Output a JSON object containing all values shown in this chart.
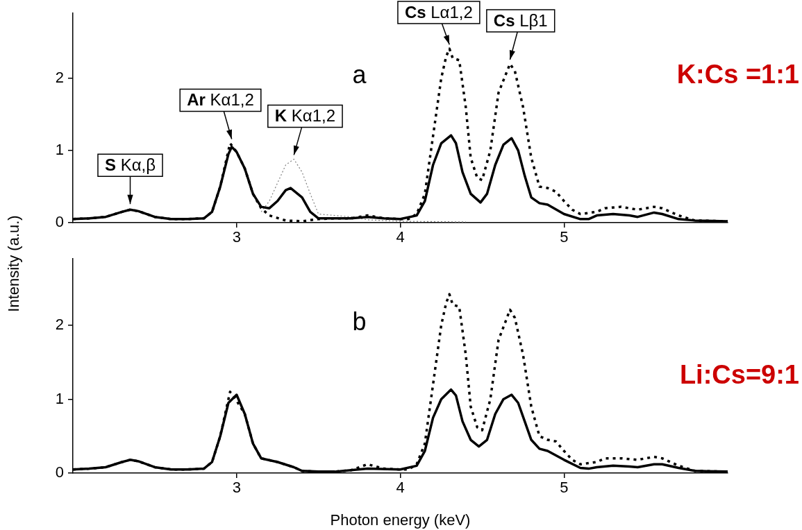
{
  "chart_data": [
    {
      "type": "line",
      "title": "a",
      "subtitle": "K:Cs =1:1",
      "ylabel": "Intensity (a.u.)",
      "xlim": [
        2,
        6
      ],
      "xticks": [
        3,
        4,
        5
      ],
      "ylim": [
        0,
        2.9
      ],
      "yticks": [
        0,
        1,
        2
      ],
      "grid": false,
      "legend": false,
      "marker": "none",
      "annotations": [
        {
          "text": "S Kα,β",
          "x": 2.35,
          "y": 0.2
        },
        {
          "text": "Ar Kα1,2",
          "x": 2.97,
          "y": 1.1
        },
        {
          "text": "K Kα1,2",
          "x": 3.35,
          "y": 0.88
        },
        {
          "text": "Cs Lα1,2",
          "x": 4.3,
          "y": 2.41
        },
        {
          "text": "Cs Lβ1",
          "x": 4.67,
          "y": 2.2
        }
      ],
      "series": [
        {
          "color": "#000000",
          "line_style": "solid",
          "x": [
            2.0,
            2.1,
            2.2,
            2.3,
            2.35,
            2.4,
            2.5,
            2.6,
            2.7,
            2.8,
            2.85,
            2.9,
            2.95,
            2.97,
            3.0,
            3.05,
            3.1,
            3.15,
            3.2,
            3.25,
            3.3,
            3.33,
            3.4,
            3.45,
            3.5,
            3.6,
            3.7,
            3.8,
            3.9,
            4.0,
            4.1,
            4.15,
            4.2,
            4.25,
            4.31,
            4.34,
            4.38,
            4.43,
            4.49,
            4.53,
            4.58,
            4.63,
            4.68,
            4.72,
            4.76,
            4.8,
            4.85,
            4.9,
            5.0,
            5.1,
            5.15,
            5.2,
            5.3,
            5.4,
            5.45,
            5.55,
            5.6,
            5.7,
            5.8,
            6.0
          ],
          "values": [
            0.05,
            0.06,
            0.08,
            0.15,
            0.18,
            0.16,
            0.08,
            0.05,
            0.05,
            0.06,
            0.15,
            0.5,
            0.95,
            1.05,
            0.98,
            0.75,
            0.4,
            0.22,
            0.2,
            0.3,
            0.45,
            0.48,
            0.35,
            0.15,
            0.06,
            0.06,
            0.06,
            0.08,
            0.06,
            0.05,
            0.1,
            0.3,
            0.8,
            1.1,
            1.21,
            1.1,
            0.7,
            0.4,
            0.28,
            0.4,
            0.8,
            1.08,
            1.17,
            1.0,
            0.65,
            0.35,
            0.27,
            0.25,
            0.12,
            0.05,
            0.05,
            0.1,
            0.12,
            0.1,
            0.08,
            0.14,
            0.12,
            0.05,
            0.03,
            0.02
          ]
        },
        {
          "color": "#000000",
          "line_style": "dotted",
          "x": [
            2.0,
            2.1,
            2.2,
            2.3,
            2.35,
            2.4,
            2.5,
            2.6,
            2.7,
            2.8,
            2.85,
            2.9,
            2.96,
            3.0,
            3.05,
            3.1,
            3.15,
            3.2,
            3.3,
            3.4,
            3.5,
            3.6,
            3.7,
            3.8,
            3.9,
            4.0,
            4.05,
            4.1,
            4.15,
            4.2,
            4.25,
            4.28,
            4.3,
            4.32,
            4.36,
            4.4,
            4.43,
            4.47,
            4.5,
            4.55,
            4.6,
            4.67,
            4.7,
            4.75,
            4.8,
            4.85,
            4.9,
            4.95,
            5.0,
            5.05,
            5.1,
            5.2,
            5.25,
            5.35,
            5.45,
            5.55,
            5.6,
            5.7,
            5.8,
            6.0
          ],
          "values": [
            0.05,
            0.06,
            0.08,
            0.15,
            0.18,
            0.16,
            0.08,
            0.05,
            0.05,
            0.06,
            0.15,
            0.5,
            1.1,
            0.98,
            0.75,
            0.4,
            0.2,
            0.1,
            0.03,
            0.02,
            0.05,
            0.06,
            0.06,
            0.1,
            0.06,
            0.05,
            0.05,
            0.12,
            0.4,
            1.2,
            2.0,
            2.3,
            2.41,
            2.28,
            2.25,
            1.6,
            0.9,
            0.62,
            0.59,
            1.0,
            1.8,
            2.2,
            2.1,
            1.6,
            0.9,
            0.5,
            0.48,
            0.43,
            0.3,
            0.18,
            0.12,
            0.15,
            0.2,
            0.22,
            0.18,
            0.22,
            0.2,
            0.1,
            0.03,
            0.02
          ]
        },
        {
          "color": "#808080",
          "line_style": "dotted",
          "x": [
            3.15,
            3.2,
            3.25,
            3.3,
            3.35,
            3.4,
            3.45,
            3.5,
            3.6,
            3.7,
            3.8,
            4.0,
            4.4
          ],
          "values": [
            0.15,
            0.3,
            0.55,
            0.8,
            0.88,
            0.7,
            0.4,
            0.12,
            0.1,
            0.08,
            0.04,
            0.02,
            0.01
          ]
        }
      ]
    },
    {
      "type": "line",
      "title": "b",
      "subtitle": "Li:Cs=9:1",
      "xlabel": "Photon energy (keV)",
      "xlim": [
        2,
        6
      ],
      "xticks": [
        3,
        4,
        5
      ],
      "ylim": [
        0,
        2.9
      ],
      "yticks": [
        0,
        1,
        2
      ],
      "grid": false,
      "legend": false,
      "marker": "none",
      "series": [
        {
          "color": "#000000",
          "line_style": "solid",
          "x": [
            2.0,
            2.1,
            2.2,
            2.3,
            2.35,
            2.4,
            2.5,
            2.6,
            2.7,
            2.8,
            2.85,
            2.9,
            2.95,
            3.0,
            3.05,
            3.1,
            3.15,
            3.25,
            3.35,
            3.4,
            3.5,
            3.6,
            3.7,
            3.8,
            4.0,
            4.1,
            4.15,
            4.2,
            4.25,
            4.31,
            4.34,
            4.38,
            4.43,
            4.48,
            4.53,
            4.58,
            4.63,
            4.68,
            4.72,
            4.76,
            4.8,
            4.85,
            4.9,
            5.0,
            5.1,
            5.15,
            5.2,
            5.3,
            5.4,
            5.45,
            5.55,
            5.6,
            5.7,
            5.8,
            6.0
          ],
          "values": [
            0.05,
            0.06,
            0.08,
            0.15,
            0.18,
            0.16,
            0.08,
            0.05,
            0.05,
            0.06,
            0.15,
            0.5,
            0.95,
            1.06,
            0.8,
            0.4,
            0.2,
            0.15,
            0.08,
            0.03,
            0.02,
            0.02,
            0.04,
            0.06,
            0.05,
            0.1,
            0.3,
            0.75,
            1.0,
            1.13,
            1.05,
            0.7,
            0.45,
            0.36,
            0.45,
            0.8,
            1.0,
            1.06,
            0.95,
            0.7,
            0.45,
            0.33,
            0.3,
            0.18,
            0.07,
            0.06,
            0.08,
            0.1,
            0.09,
            0.08,
            0.12,
            0.12,
            0.07,
            0.03,
            0.02
          ]
        },
        {
          "color": "#000000",
          "line_style": "dotted",
          "x": [
            2.0,
            2.1,
            2.2,
            2.3,
            2.35,
            2.4,
            2.5,
            2.6,
            2.7,
            2.8,
            2.85,
            2.9,
            2.96,
            3.0,
            3.05,
            3.1,
            3.15,
            3.25,
            3.35,
            3.4,
            3.5,
            3.6,
            3.7,
            3.8,
            3.9,
            4.0,
            4.05,
            4.1,
            4.15,
            4.2,
            4.25,
            4.28,
            4.3,
            4.32,
            4.36,
            4.4,
            4.43,
            4.47,
            4.5,
            4.55,
            4.6,
            4.67,
            4.7,
            4.75,
            4.8,
            4.85,
            4.9,
            4.95,
            5.0,
            5.05,
            5.1,
            5.2,
            5.25,
            5.35,
            5.45,
            5.55,
            5.6,
            5.7,
            5.8,
            6.0
          ],
          "values": [
            0.05,
            0.06,
            0.08,
            0.15,
            0.18,
            0.16,
            0.08,
            0.05,
            0.05,
            0.06,
            0.15,
            0.5,
            1.1,
            0.98,
            0.8,
            0.4,
            0.2,
            0.15,
            0.08,
            0.03,
            0.02,
            0.02,
            0.04,
            0.12,
            0.06,
            0.05,
            0.05,
            0.12,
            0.4,
            1.2,
            2.0,
            2.3,
            2.42,
            2.28,
            2.25,
            1.6,
            0.9,
            0.62,
            0.58,
            1.0,
            1.8,
            2.21,
            2.1,
            1.6,
            0.9,
            0.5,
            0.45,
            0.43,
            0.3,
            0.18,
            0.12,
            0.15,
            0.2,
            0.2,
            0.18,
            0.22,
            0.2,
            0.1,
            0.03,
            0.02
          ]
        }
      ]
    }
  ]
}
